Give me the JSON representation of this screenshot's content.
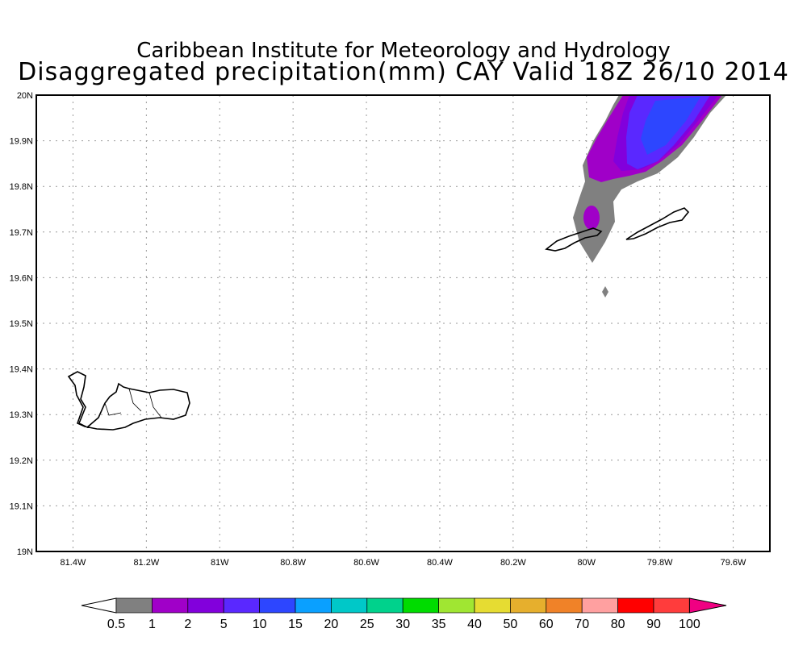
{
  "title_line1": "Caribbean Institute for Meteorology and Hydrology",
  "title_line2": "Disaggregated precipitation(mm) CAY Valid 18Z 26/10 2014",
  "lat_labels": [
    "20N",
    "19.9N",
    "19.8N",
    "19.7N",
    "19.6N",
    "19.5N",
    "19.4N",
    "19.3N",
    "19.2N",
    "19.1N",
    "19N"
  ],
  "lon_labels": [
    "81.4W",
    "81.2W",
    "81W",
    "80.8W",
    "80.6W",
    "80.4W",
    "80.2W",
    "80W",
    "79.8W",
    "79.6W"
  ],
  "colorbar": {
    "labels": [
      "0.5",
      "1",
      "2",
      "5",
      "10",
      "15",
      "20",
      "25",
      "30",
      "35",
      "40",
      "50",
      "60",
      "70",
      "80",
      "90",
      "100"
    ],
    "under_color": "#ffffff",
    "colors": [
      "#808080",
      "#a000c8",
      "#8200dc",
      "#5a28ff",
      "#2d46ff",
      "#0aa0ff",
      "#00c8c8",
      "#00d28c",
      "#00dc00",
      "#a0e632",
      "#e6dc32",
      "#e6af2d",
      "#f08228",
      "#ffa0a0",
      "#ff0000",
      "#ff3c3c"
    ],
    "over_color": "#f00082"
  }
}
